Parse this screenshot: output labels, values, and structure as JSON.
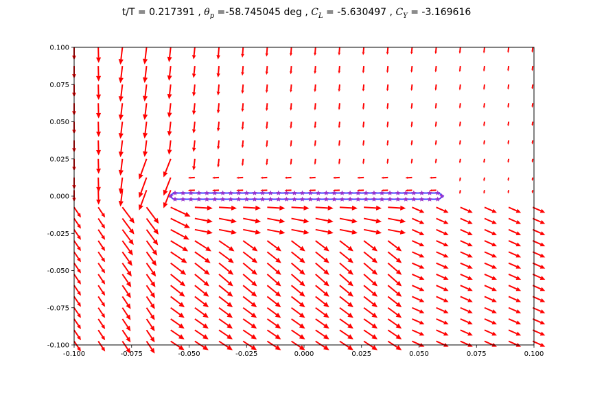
{
  "title": {
    "part1": "t/T = 0.217391 , ",
    "theta_sym": "θ",
    "theta_sub": "p",
    "part2": " =-58.745045 deg , ",
    "cl_sym": "C",
    "cl_sub": "L",
    "part3": " = -5.630497 , ",
    "cy_sym": "C",
    "cy_sub": "Y",
    "part4": " = -3.169616"
  },
  "chart_data": {
    "type": "quiver",
    "xlim": [
      -0.1,
      0.1
    ],
    "ylim": [
      -0.1,
      0.1
    ],
    "xticks": [
      "-0.100",
      "-0.075",
      "-0.050",
      "-0.025",
      "0.000",
      "0.025",
      "0.050",
      "0.075",
      "0.100"
    ],
    "yticks": [
      "0.100",
      "0.075",
      "0.050",
      "0.025",
      "0.000",
      "-0.025",
      "-0.050",
      "-0.075",
      "-0.100"
    ],
    "grid": false,
    "vector_color": "#ff0000",
    "body_color": "#9932cc",
    "body_outline_color": "#4444ff",
    "body": {
      "x_start": -0.0585,
      "x_end": 0.0605,
      "y_upper": 0.0021,
      "y_lower": -0.0021,
      "marker": "star",
      "marker_count": 34
    },
    "field_description": "velocity vectors on a regular grid; downward flow above the body, rightward-downward flow below the body, strong vortex near the leading edge at x≈-0.07"
  }
}
